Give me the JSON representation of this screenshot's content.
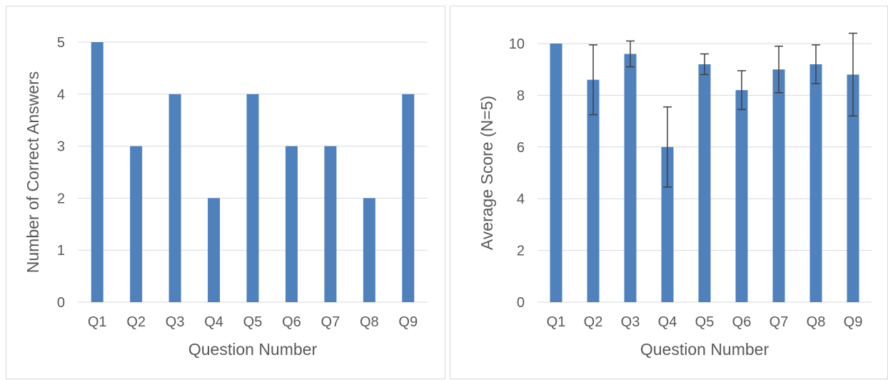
{
  "chart_data": [
    {
      "type": "bar",
      "categories": [
        "Q1",
        "Q2",
        "Q3",
        "Q4",
        "Q5",
        "Q6",
        "Q7",
        "Q8",
        "Q9"
      ],
      "values": [
        5,
        3,
        4,
        2,
        4,
        3,
        3,
        2,
        4
      ],
      "xlabel": "Question Number",
      "ylabel": "Number of Correct Answers",
      "ylim": [
        0,
        5
      ],
      "yticks": [
        0,
        1,
        2,
        3,
        4,
        5
      ],
      "grid": true,
      "bar_color": "#4f81bd"
    },
    {
      "type": "bar",
      "categories": [
        "Q1",
        "Q2",
        "Q3",
        "Q4",
        "Q5",
        "Q6",
        "Q7",
        "Q8",
        "Q9"
      ],
      "values": [
        10,
        8.6,
        9.6,
        6,
        9.2,
        8.2,
        9,
        9.2,
        8.8
      ],
      "error": [
        0,
        1.35,
        0.5,
        1.55,
        0.4,
        0.75,
        0.9,
        0.75,
        1.6
      ],
      "xlabel": "Question Number",
      "ylabel": "Average Score (N=5)",
      "ylim": [
        0,
        10
      ],
      "yticks": [
        0,
        2,
        4,
        6,
        8,
        10
      ],
      "grid": true,
      "bar_color": "#4f81bd",
      "error_bar_color": "#404040"
    }
  ]
}
